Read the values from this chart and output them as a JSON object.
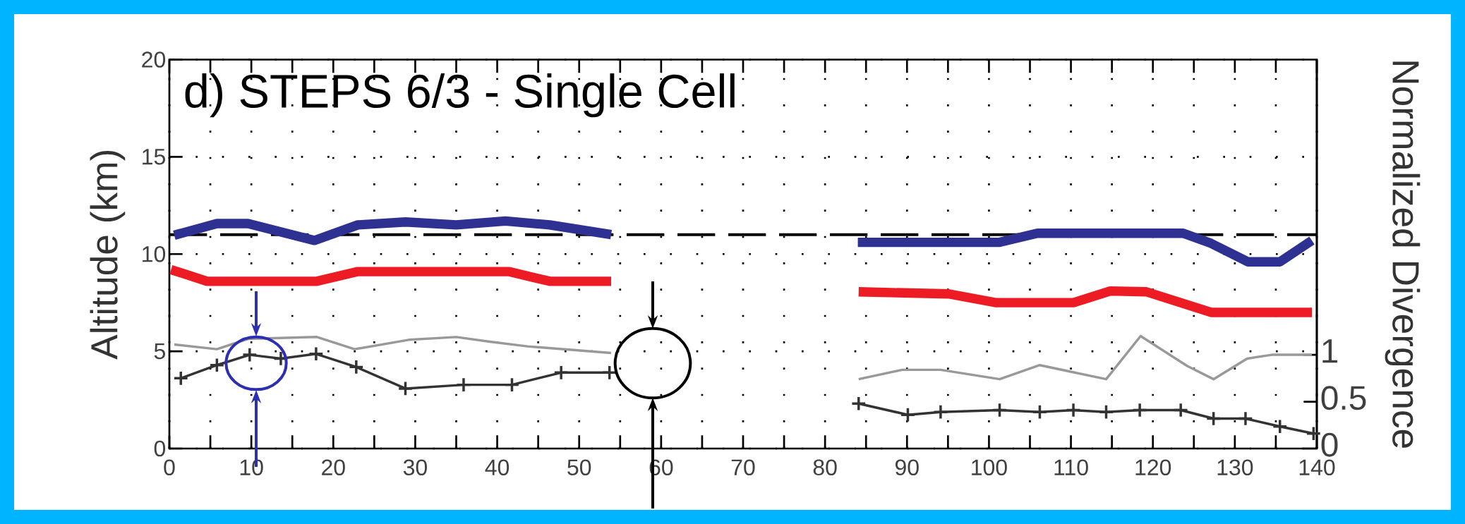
{
  "chart_data": {
    "type": "line",
    "title": "d) STEPS 6/3  -  Single Cell",
    "ylabel": "Altitude (km)",
    "y2label": "Normalized Divergence",
    "xlim": [
      0,
      140
    ],
    "ylim": [
      0,
      20
    ],
    "y2lim": [
      0,
      4.15
    ],
    "xticks": [
      0,
      {
        "value": 5,
        "label": null
      },
      10,
      {
        "value": 15,
        "label": null
      },
      20,
      {
        "value": 25,
        "label": null
      },
      30,
      {
        "value": 35,
        "label": null
      },
      40,
      {
        "value": 45,
        "label": null
      },
      50,
      {
        "value": 55,
        "label": null
      },
      60,
      {
        "value": 65,
        "label": null
      },
      70,
      {
        "value": 75,
        "label": null
      },
      80,
      {
        "value": 85,
        "label": null
      },
      90,
      {
        "value": 95,
        "label": null
      },
      100,
      {
        "value": 105,
        "label": null
      },
      110,
      {
        "value": 115,
        "label": null
      },
      120,
      {
        "value": 125,
        "label": null
      },
      130,
      {
        "value": 135,
        "label": null
      },
      140
    ],
    "yticks": [
      0,
      5,
      10,
      15,
      20
    ],
    "y2ticks": [
      0,
      0.5,
      1
    ],
    "grid": true,
    "ref_lines": [
      {
        "axis": "y",
        "value": 11,
        "color": "#000000",
        "line_style": "dashed"
      }
    ],
    "series": [
      {
        "color": "#2e3192",
        "x": [
          0.6,
          5.8,
          9.6,
          17.7,
          23,
          28.8,
          35,
          41,
          46.4,
          53.9,
          70,
          84,
          101.2,
          105.9,
          123.7,
          127.1,
          131.6,
          135.5,
          139.4
        ],
        "values": [
          10.97,
          11.57,
          11.57,
          10.7,
          11.5,
          11.65,
          11.5,
          11.7,
          11.5,
          11.0,
          null,
          10.6,
          10.6,
          11.07,
          11.07,
          10.55,
          9.6,
          9.6,
          10.7
        ]
      },
      {
        "color": "#ed1c24",
        "x": [
          0.2,
          4.6,
          18,
          23,
          41.4,
          46.4,
          53.9,
          70,
          84.1,
          95.1,
          100.9,
          110.3,
          114.8,
          119.2,
          127.1,
          139.4
        ],
        "values": [
          9.2,
          8.6,
          8.6,
          9.1,
          9.1,
          8.6,
          8.6,
          null,
          8.06,
          7.95,
          7.5,
          7.5,
          8.1,
          8.06,
          7.0,
          7.0
        ]
      },
      {
        "color": "#999999",
        "axis": "y2",
        "x": [
          0.6,
          5.8,
          9.6,
          18,
          22.6,
          29.2,
          35,
          39.1,
          43.7,
          53.9,
          70,
          84.1,
          89.4,
          94.1,
          101.3,
          106.2,
          114.3,
          118.5,
          124.2,
          127.4,
          131.5,
          134.5,
          139.4
        ],
        "values": [
          1.11,
          1.06,
          1.17,
          1.19,
          1.06,
          1.16,
          1.19,
          1.14,
          1.09,
          1.02,
          null,
          0.74,
          0.84,
          0.84,
          0.74,
          0.89,
          0.74,
          1.2,
          0.88,
          0.74,
          0.96,
          1.0,
          1.0
        ]
      },
      {
        "color": "#333333",
        "axis": "y2",
        "marker": "cross",
        "x": [
          1.4,
          5.8,
          9.8,
          13.6,
          17.9,
          22.8,
          28.8,
          35.9,
          41.8,
          47.8,
          53.7,
          70,
          84.1,
          90.1,
          94.1,
          101.3,
          106.2,
          110.3,
          114.3,
          118.4,
          123.4,
          127.4,
          131.3,
          135.5,
          139.6
        ],
        "values": [
          0.75,
          0.89,
          1.0,
          0.96,
          1.01,
          0.87,
          0.64,
          0.68,
          0.68,
          0.81,
          0.81,
          null,
          0.48,
          0.36,
          0.39,
          0.41,
          0.39,
          0.41,
          0.39,
          0.41,
          0.41,
          0.32,
          0.32,
          0.235,
          0.16
        ]
      }
    ]
  }
}
